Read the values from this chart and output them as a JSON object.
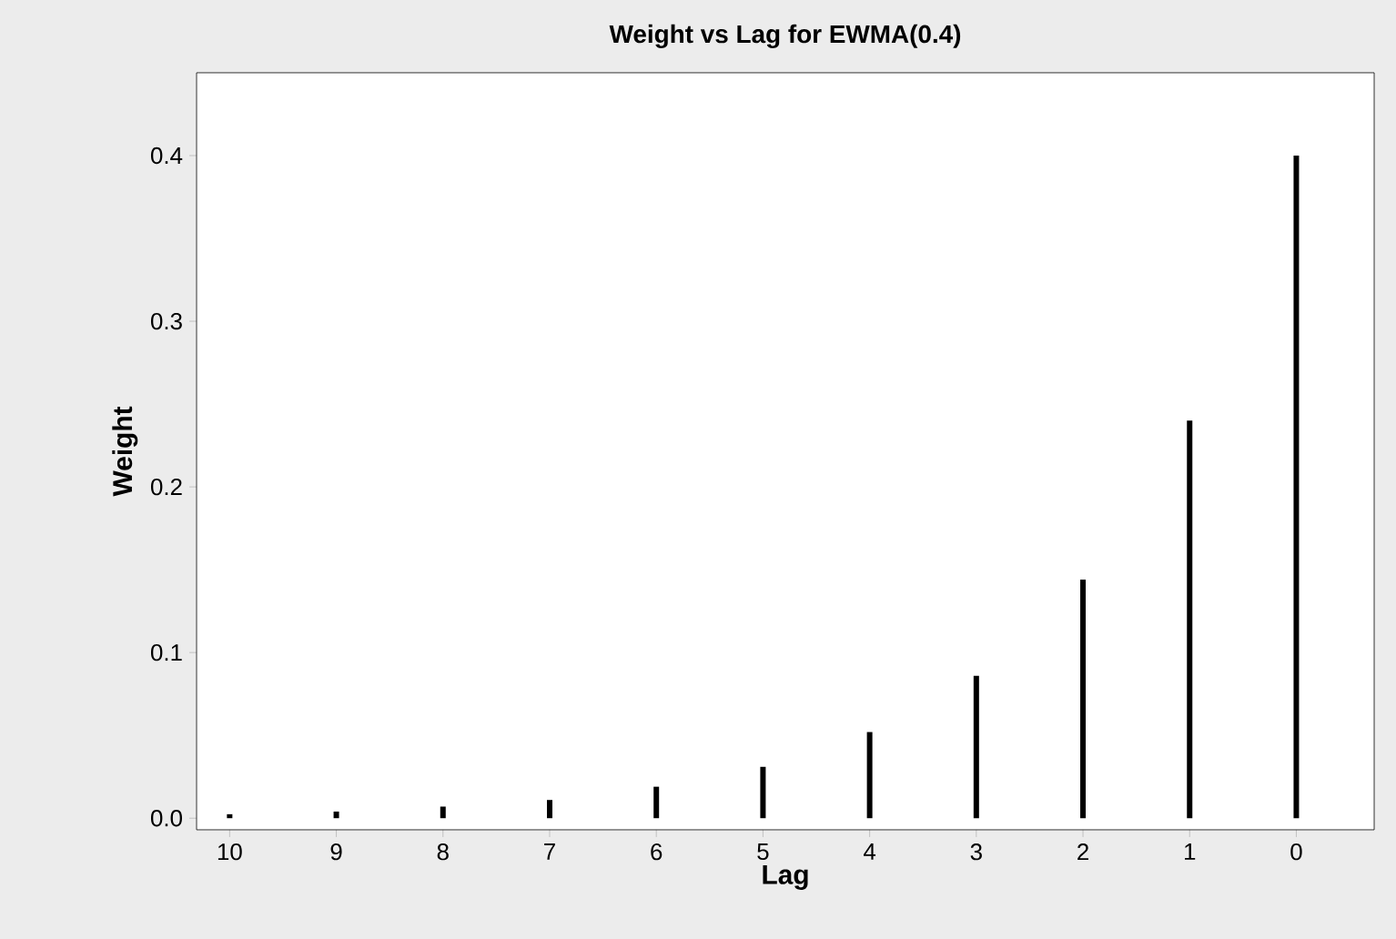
{
  "chart_data": {
    "type": "bar",
    "title": "Weight vs Lag for EWMA(0.4)",
    "xlabel": "Lag",
    "ylabel": "Weight",
    "categories": [
      "10",
      "9",
      "8",
      "7",
      "6",
      "5",
      "4",
      "3",
      "2",
      "1",
      "0"
    ],
    "values": [
      0.0024,
      0.004,
      0.007,
      0.011,
      0.019,
      0.031,
      0.052,
      0.086,
      0.144,
      0.24,
      0.4
    ],
    "color": "#000000",
    "ylim": [
      -0.007,
      0.45
    ],
    "yticks": [
      {
        "value": 0,
        "label": "0.0"
      },
      {
        "value": 0.1,
        "label": "0.1"
      },
      {
        "value": 0.2,
        "label": "0.2"
      },
      {
        "value": 0.3,
        "label": "0.3"
      },
      {
        "value": 0.4,
        "label": "0.4"
      }
    ]
  }
}
